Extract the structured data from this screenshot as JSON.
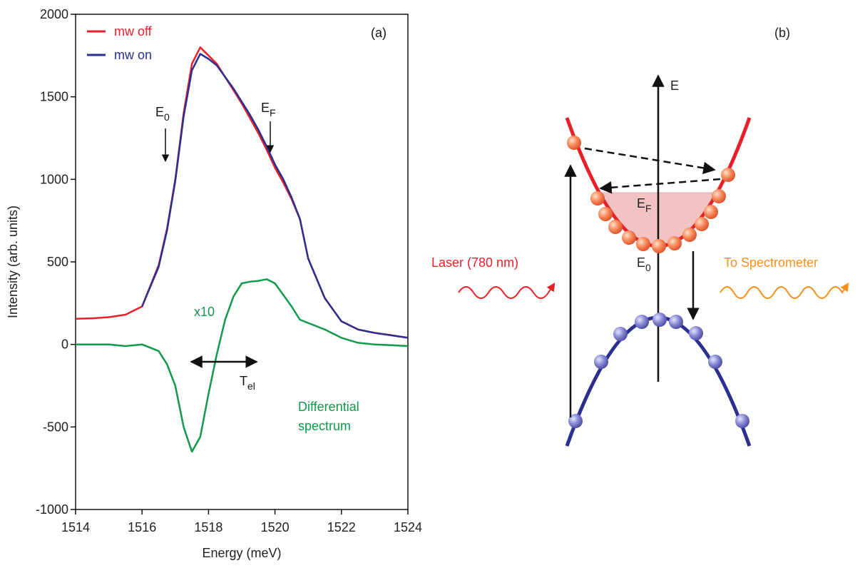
{
  "chart_data": {
    "type": "line",
    "x_label": "Energy (meV)",
    "y_label": "Intensity (arb. units)",
    "xlim": [
      1514,
      1524
    ],
    "xticks": [
      1514,
      1516,
      1518,
      1520,
      1522,
      1524
    ],
    "ylim": [
      -1000,
      2000
    ],
    "yticks": [
      -1000,
      -500,
      0,
      500,
      1000,
      1500,
      2000
    ],
    "legend": "top-left",
    "x": [
      1514,
      1514.5,
      1515,
      1515.5,
      1516,
      1516.5,
      1516.75,
      1517,
      1517.25,
      1517.5,
      1517.75,
      1518,
      1518.25,
      1518.5,
      1518.75,
      1519,
      1519.25,
      1519.5,
      1519.75,
      1520,
      1520.25,
      1520.5,
      1520.75,
      1521,
      1521.5,
      1522,
      1522.5,
      1523,
      1523.5,
      1524
    ],
    "series": [
      {
        "name": "mw off",
        "color": "#e8202a",
        "values": [
          155,
          158,
          165,
          180,
          230,
          480,
          700,
          1000,
          1400,
          1700,
          1800,
          1750,
          1700,
          1620,
          1540,
          1460,
          1370,
          1280,
          1180,
          1070,
          980,
          880,
          760,
          520,
          280,
          140,
          90,
          70,
          55,
          40
        ]
      },
      {
        "name": "mw on",
        "color": "#2b2f8f",
        "values": [
          null,
          null,
          null,
          null,
          230,
          470,
          690,
          990,
          1380,
          1660,
          1760,
          1730,
          1690,
          1620,
          1550,
          1470,
          1390,
          1300,
          1200,
          1090,
          1000,
          890,
          760,
          520,
          280,
          140,
          90,
          70,
          55,
          40
        ]
      },
      {
        "color": "#109a4a",
        "values": [
          0,
          0,
          0,
          -10,
          0,
          -40,
          -120,
          -250,
          -500,
          -650,
          -560,
          -300,
          -60,
          150,
          290,
          370,
          380,
          385,
          395,
          370,
          300,
          230,
          150,
          130,
          90,
          40,
          10,
          0,
          -5,
          -10
        ]
      }
    ],
    "annotations": [
      {
        "text": "(a)"
      },
      {
        "text": "E",
        "sub": "0"
      },
      {
        "text": "E",
        "sub": "F"
      },
      {
        "text": "x10"
      },
      {
        "text": "T",
        "sub": "el"
      },
      {
        "text": "Differential"
      },
      {
        "text": "spectrum"
      }
    ]
  },
  "diagram": {
    "panel_label": "(b)",
    "energy_axis": "E",
    "fermi_level": {
      "text": "E",
      "sub": "F"
    },
    "band_edge": {
      "text": "E",
      "sub": "0"
    },
    "laser": "Laser (780 nm)",
    "output": "To Spectrometer"
  }
}
